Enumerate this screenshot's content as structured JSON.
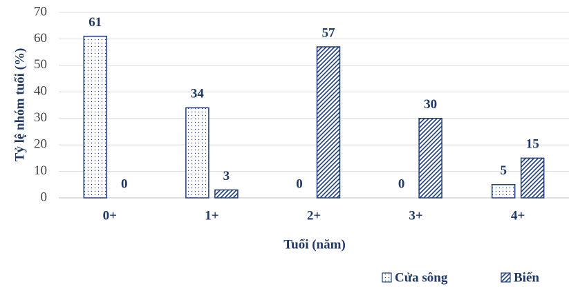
{
  "chart_data": {
    "type": "bar",
    "x_label": "Tuổi (năm)",
    "y_label": "Tỷ lệ nhóm tuổi (%)",
    "categories": [
      "0+",
      "1+",
      "2+",
      "3+",
      "4+"
    ],
    "series": [
      {
        "name": "Cửa sông",
        "color": "#1f3d7a",
        "pattern": "dots",
        "values": [
          61,
          34,
          0,
          0,
          5
        ]
      },
      {
        "name": "Biển",
        "color": "#1f3d7a",
        "pattern": "hatch",
        "values": [
          0,
          3,
          57,
          30,
          15
        ]
      }
    ],
    "ylim": [
      0,
      70
    ],
    "yticks": [
      0,
      10,
      20,
      30,
      40,
      50,
      60,
      70
    ],
    "grid": true,
    "legend": "bottom-right"
  }
}
